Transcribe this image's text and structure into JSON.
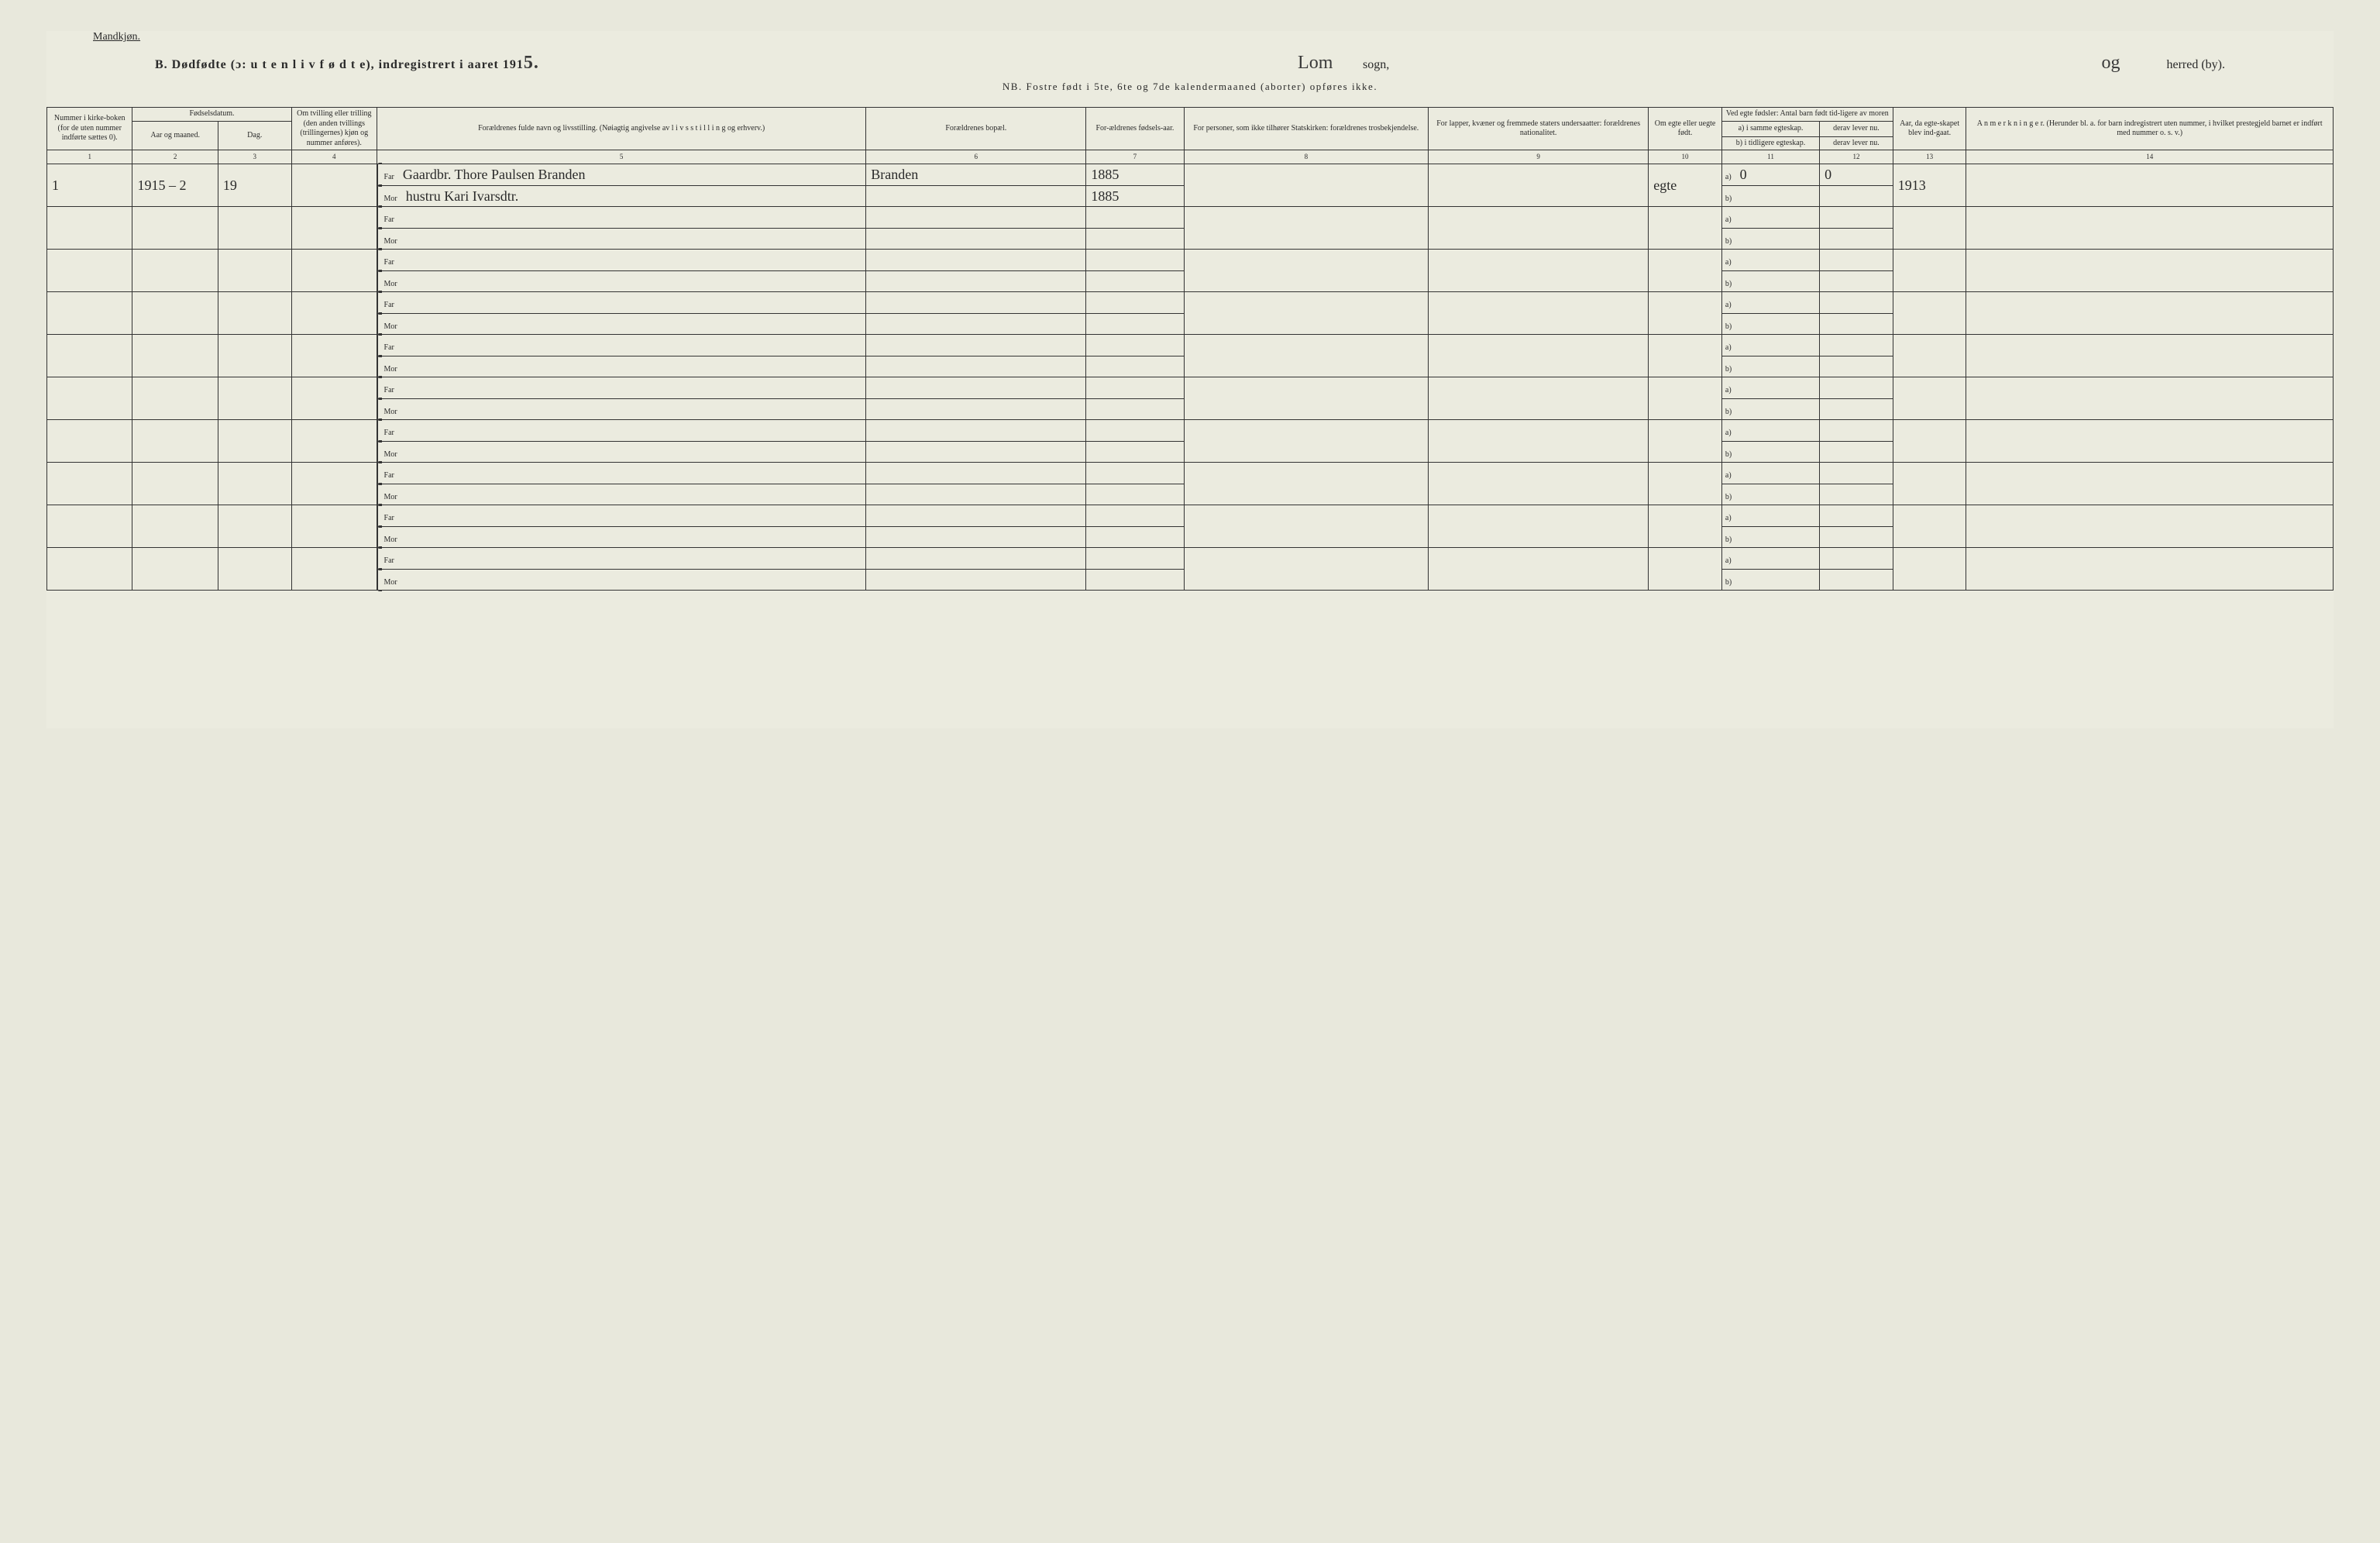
{
  "header": {
    "gender_label": "Mandkjøn.",
    "title_prefix": "B.  Dødfødte (ɔ:  u t e n  l i v  f ø d t e),  indregistrert i aaret 191",
    "year_digit": "5.",
    "sogn_hw": "Lom",
    "sogn_label": "sogn,",
    "herred_hw": "og",
    "herred_label": "herred (by).",
    "nb_line": "NB.  Fostre født i 5te, 6te og 7de kalendermaaned (aborter) opføres ikke."
  },
  "columns": {
    "c1": "Nummer i kirke-boken (for de uten nummer indførte sættes 0).",
    "c2_group": "Fødselsdatum.",
    "c2": "Aar og maaned.",
    "c3": "Dag.",
    "c4": "Om tvilling eller trilling (den anden tvillings (trillingernes) kjøn og nummer anføres).",
    "c5": "Forældrenes fulde navn og livsstilling. (Nøiagtig angivelse av l i v s s t i l l i n g og erhverv.)",
    "c6": "Forældrenes bopæl.",
    "c7": "For-ældrenes fødsels-aar.",
    "c8": "For personer, som ikke tilhører Statskirken: forældrenes trosbekjendelse.",
    "c9": "For lapper, kvæner og fremmede staters undersaatter: forældrenes nationalitet.",
    "c10": "Om egte eller uegte født.",
    "c11_group": "Ved egte fødsler: Antal barn født tid-ligere av moren",
    "c11": "a) i samme egteskap.",
    "c12": "derav lever nu.",
    "c11b": "b) i tidligere egteskap.",
    "c12b": "derav lever nu.",
    "c13": "Aar, da egte-skapet blev ind-gaat.",
    "c14": "A n m e r k n i n g e r. (Herunder bl. a. for barn indregistrert uten nummer, i hvilket prestegjeld barnet er indført med nummer o. s. v.)"
  },
  "colnums": [
    "1",
    "2",
    "3",
    "4",
    "5",
    "6",
    "7",
    "8",
    "9",
    "10",
    "11",
    "12",
    "13",
    "14"
  ],
  "labels": {
    "far": "Far",
    "mor": "Mor",
    "a": "a)",
    "b": "b)"
  },
  "entries": [
    {
      "num": "1",
      "aar_mnd": "1915 – 2",
      "dag": "19",
      "tvilling": "",
      "far_navn": "Gaardbr. Thore Paulsen Branden",
      "far_bopel": "Branden",
      "far_aar": "1885",
      "mor_navn": "hustru Kari Ivarsdtr.",
      "mor_bopel": "",
      "mor_aar": "1885",
      "c8": "",
      "c9": "",
      "egte": "egte",
      "a_same": "0",
      "a_lever": "0",
      "b_tidl": "",
      "b_lever": "",
      "aar_egteskap": "1913",
      "anm": ""
    }
  ],
  "blank_rows": 9,
  "style": {
    "bg": "#ebebdf",
    "ink": "#2a2a2a",
    "border": "#333333",
    "header_fontsize": 10,
    "hw_fontsize": 18
  }
}
